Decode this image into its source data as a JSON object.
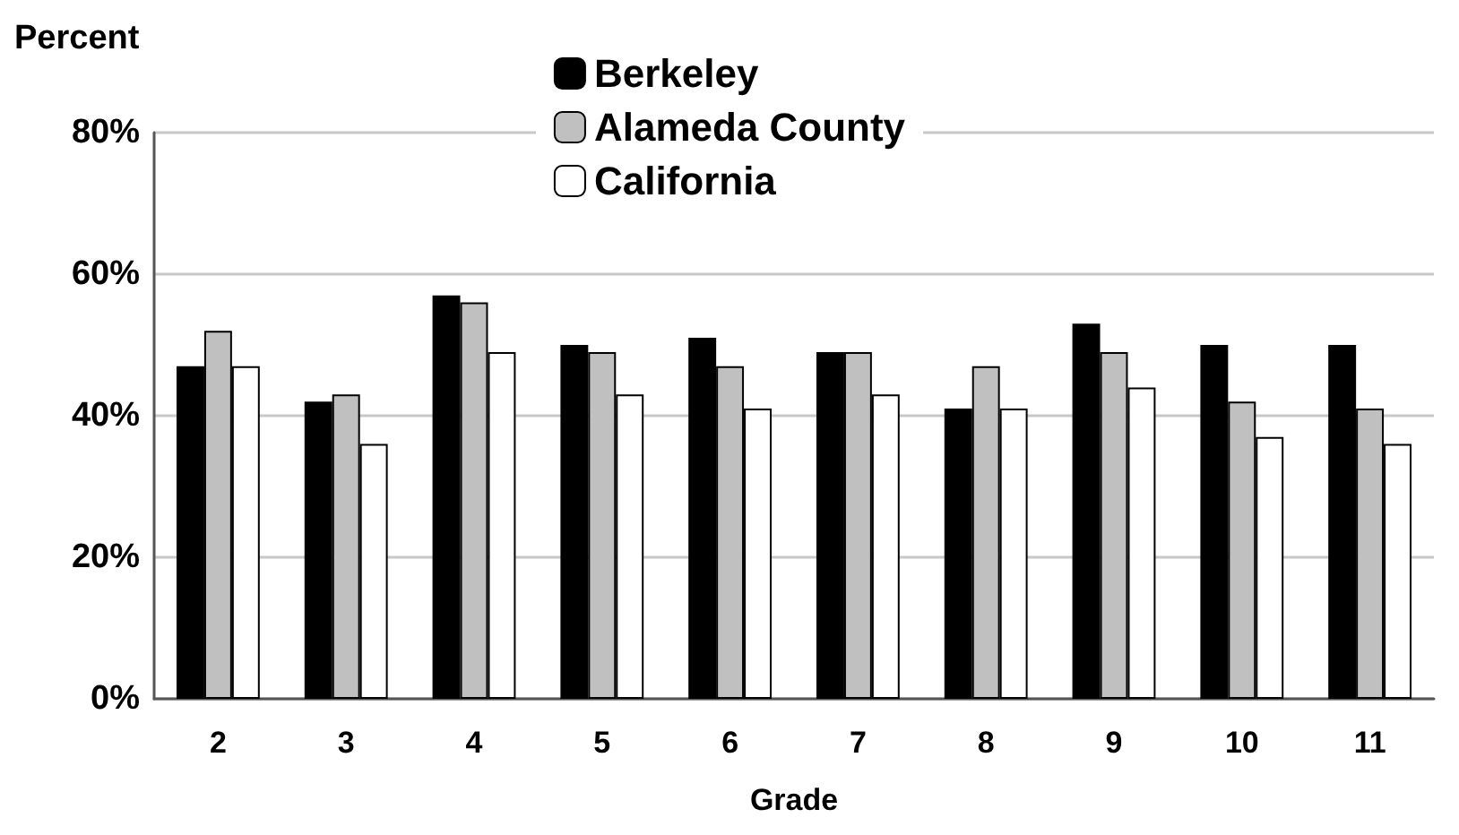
{
  "chart_data": {
    "type": "bar",
    "xlabel": "Grade",
    "ylabel": "Percent",
    "categories": [
      "2",
      "3",
      "4",
      "5",
      "6",
      "7",
      "8",
      "9",
      "10",
      "11"
    ],
    "series": [
      {
        "name": "Berkeley",
        "color": "#000000",
        "values": [
          47,
          42,
          57,
          50,
          51,
          49,
          41,
          53,
          50,
          50
        ]
      },
      {
        "name": "Alameda County",
        "color": "#c0c0c0",
        "values": [
          52,
          43,
          56,
          49,
          47,
          49,
          47,
          49,
          42,
          41
        ]
      },
      {
        "name": "California",
        "color": "#ffffff",
        "values": [
          47,
          36,
          49,
          43,
          41,
          43,
          41,
          44,
          37,
          36
        ]
      }
    ],
    "ylim": [
      0,
      80
    ],
    "yticks": [
      {
        "value": 0,
        "label": "0%"
      },
      {
        "value": 20,
        "label": "20%"
      },
      {
        "value": 40,
        "label": "40%"
      },
      {
        "value": 60,
        "label": "60%"
      },
      {
        "value": 80,
        "label": "80%"
      }
    ],
    "grid": "y",
    "legend": "top"
  }
}
